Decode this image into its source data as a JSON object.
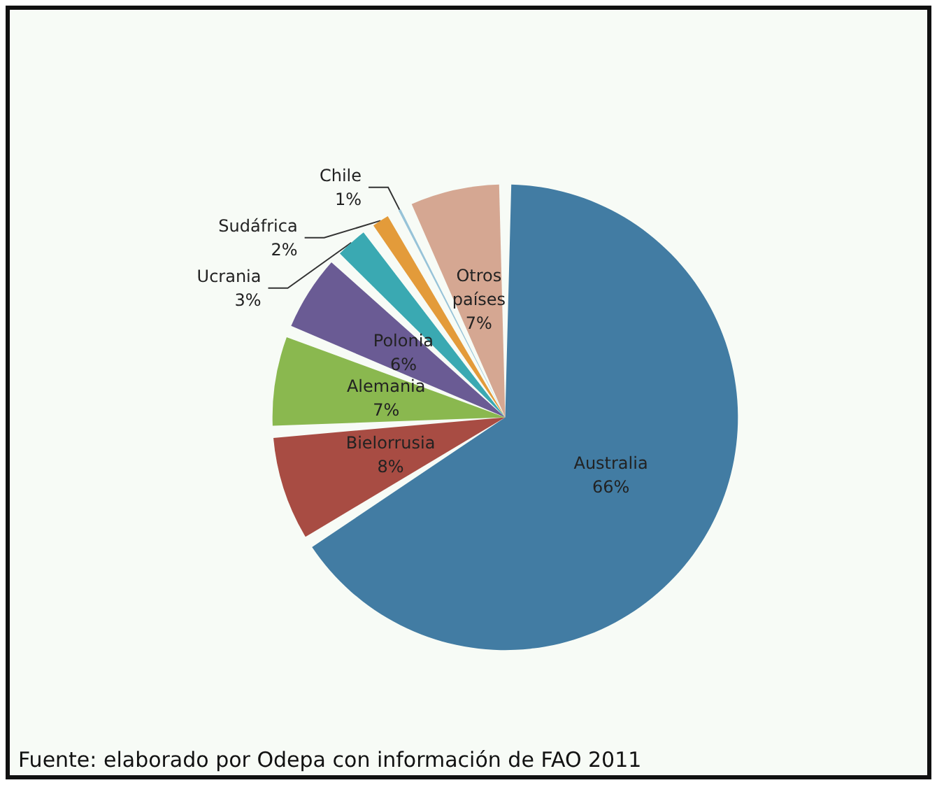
{
  "chart_data": {
    "type": "pie",
    "categories": [
      "Australia",
      "Bielorrusia",
      "Alemania",
      "Polonia",
      "Ucrania",
      "Sudáfrica",
      "Chile",
      "Otros países"
    ],
    "values": [
      66,
      8,
      7,
      6,
      3,
      2,
      1,
      7
    ],
    "value_labels": [
      "66%",
      "8%",
      "7%",
      "6%",
      "3%",
      "2%",
      "1%",
      "7%"
    ],
    "colors": [
      "#427ca3",
      "#a84c43",
      "#8ab84f",
      "#6a5b94",
      "#3aa9b2",
      "#e39b3a",
      "#97c3d8",
      "#d5a792"
    ],
    "annotations": [
      "Fuente: elaborado por Odepa con información de FAO 2011"
    ]
  }
}
